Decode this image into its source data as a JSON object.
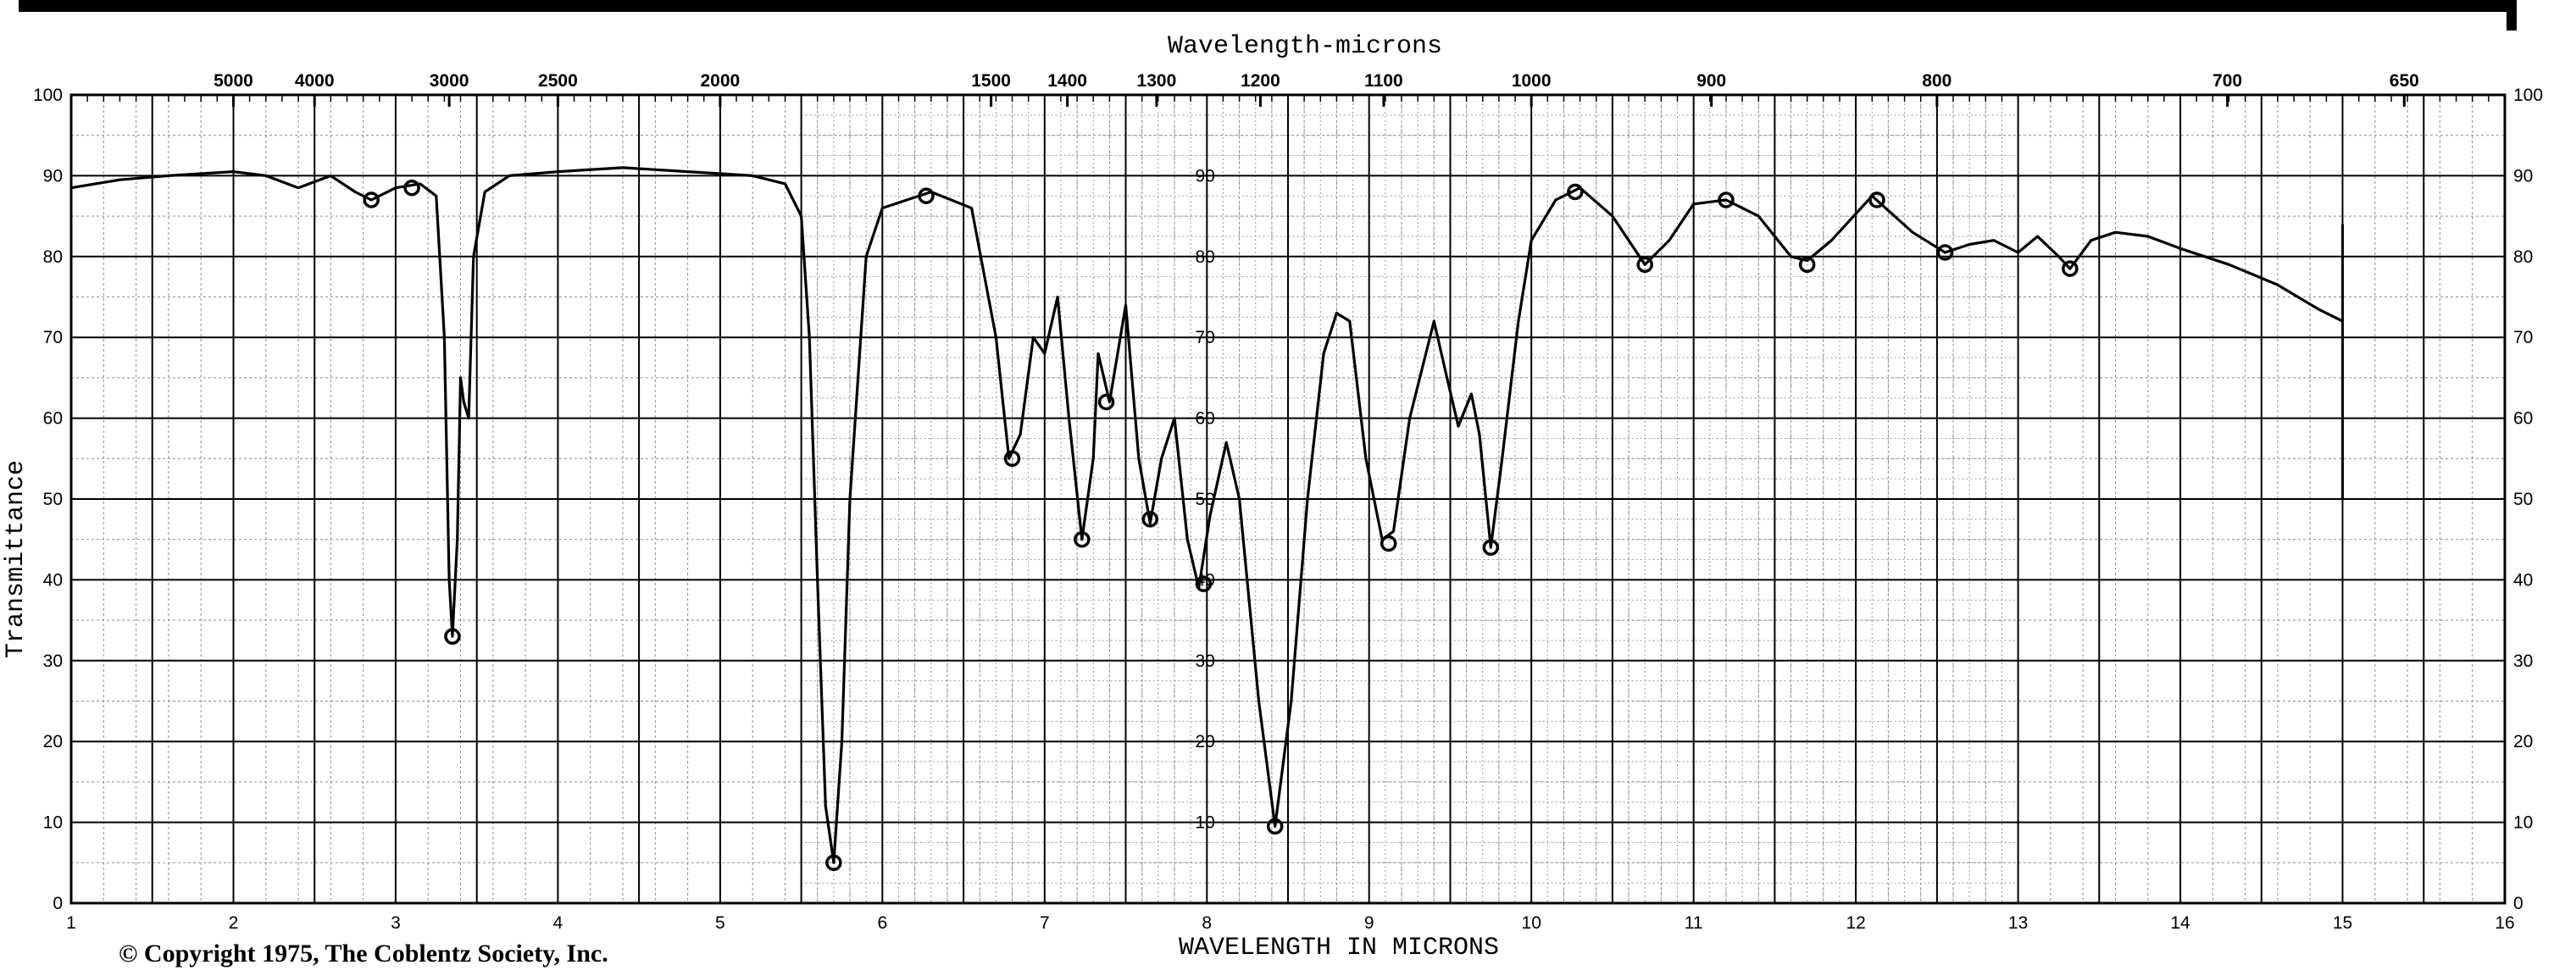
{
  "chart_data": {
    "type": "line",
    "title": "Wavelength-microns",
    "xlabel": "WAVELENGTH IN MICRONS",
    "ylabel": "Transmittance",
    "copyright": "© Copyright 1975, The Coblentz Society, Inc.",
    "xlim": [
      1,
      16
    ],
    "ylim": [
      0,
      100
    ],
    "grid": true,
    "x_ticks": [
      1,
      2,
      3,
      4,
      5,
      6,
      7,
      8,
      9,
      10,
      11,
      12,
      13,
      14,
      15,
      16
    ],
    "y_ticks": [
      0,
      10,
      20,
      30,
      40,
      50,
      60,
      70,
      80,
      90,
      100
    ],
    "y_inner_ticks": [
      10,
      20,
      30,
      40,
      50,
      60,
      70,
      80,
      90
    ],
    "top_axis_label": "Wavelength-microns",
    "top_ticks": [
      {
        "label": "5000",
        "x": 2.0
      },
      {
        "label": "4000",
        "x": 2.5
      },
      {
        "label": "3000",
        "x": 3.33
      },
      {
        "label": "2500",
        "x": 4.0
      },
      {
        "label": "2000",
        "x": 5.0
      },
      {
        "label": "1500",
        "x": 6.67
      },
      {
        "label": "1400",
        "x": 7.14
      },
      {
        "label": "1300",
        "x": 7.69
      },
      {
        "label": "1200",
        "x": 8.33
      },
      {
        "label": "1100",
        "x": 9.09
      },
      {
        "label": "1000",
        "x": 10.0
      },
      {
        "label": "900",
        "x": 11.11
      },
      {
        "label": "800",
        "x": 12.5
      },
      {
        "label": "700",
        "x": 14.29
      },
      {
        "label": "650",
        "x": 15.38
      }
    ],
    "series": [
      {
        "color": "#000000",
        "points": [
          [
            1.0,
            88.5
          ],
          [
            1.3,
            89.5
          ],
          [
            1.6,
            90
          ],
          [
            2.0,
            90.5
          ],
          [
            2.2,
            90
          ],
          [
            2.4,
            88.5
          ],
          [
            2.6,
            90
          ],
          [
            2.75,
            88
          ],
          [
            2.85,
            87
          ],
          [
            3.0,
            88.5
          ],
          [
            3.15,
            89
          ],
          [
            3.25,
            87.5
          ],
          [
            3.3,
            70
          ],
          [
            3.33,
            40
          ],
          [
            3.35,
            33
          ],
          [
            3.38,
            45
          ],
          [
            3.4,
            65
          ],
          [
            3.42,
            62
          ],
          [
            3.45,
            60
          ],
          [
            3.48,
            80
          ],
          [
            3.55,
            88
          ],
          [
            3.7,
            90
          ],
          [
            4.0,
            90.5
          ],
          [
            4.4,
            91
          ],
          [
            4.8,
            90.5
          ],
          [
            5.2,
            90
          ],
          [
            5.4,
            89
          ],
          [
            5.5,
            85
          ],
          [
            5.55,
            70
          ],
          [
            5.6,
            40
          ],
          [
            5.65,
            12
          ],
          [
            5.7,
            5
          ],
          [
            5.75,
            20
          ],
          [
            5.8,
            50
          ],
          [
            5.9,
            80
          ],
          [
            6.0,
            86
          ],
          [
            6.3,
            88
          ],
          [
            6.55,
            86
          ],
          [
            6.7,
            70
          ],
          [
            6.78,
            55
          ],
          [
            6.85,
            58
          ],
          [
            6.93,
            70
          ],
          [
            7.0,
            68
          ],
          [
            7.08,
            75
          ],
          [
            7.15,
            60
          ],
          [
            7.23,
            45
          ],
          [
            7.3,
            55
          ],
          [
            7.33,
            68
          ],
          [
            7.4,
            62
          ],
          [
            7.5,
            74
          ],
          [
            7.58,
            55
          ],
          [
            7.65,
            47
          ],
          [
            7.72,
            55
          ],
          [
            7.8,
            60
          ],
          [
            7.88,
            45
          ],
          [
            7.95,
            39
          ],
          [
            8.02,
            48
          ],
          [
            8.12,
            57
          ],
          [
            8.2,
            50
          ],
          [
            8.32,
            25
          ],
          [
            8.42,
            9.5
          ],
          [
            8.52,
            25
          ],
          [
            8.62,
            50
          ],
          [
            8.72,
            68
          ],
          [
            8.8,
            73
          ],
          [
            8.88,
            72
          ],
          [
            8.98,
            55
          ],
          [
            9.08,
            45
          ],
          [
            9.15,
            46
          ],
          [
            9.25,
            60
          ],
          [
            9.4,
            72
          ],
          [
            9.48,
            65
          ],
          [
            9.55,
            59
          ],
          [
            9.63,
            63
          ],
          [
            9.68,
            58
          ],
          [
            9.75,
            44
          ],
          [
            9.82,
            55
          ],
          [
            9.92,
            72
          ],
          [
            10.0,
            82
          ],
          [
            10.15,
            87
          ],
          [
            10.3,
            88.5
          ],
          [
            10.5,
            85
          ],
          [
            10.7,
            79
          ],
          [
            10.85,
            82
          ],
          [
            11.0,
            86.5
          ],
          [
            11.2,
            87
          ],
          [
            11.4,
            85
          ],
          [
            11.6,
            80
          ],
          [
            11.7,
            79.5
          ],
          [
            11.85,
            82
          ],
          [
            12.1,
            87.5
          ],
          [
            12.35,
            83
          ],
          [
            12.55,
            80.5
          ],
          [
            12.7,
            81.5
          ],
          [
            12.85,
            82
          ],
          [
            13.0,
            80.5
          ],
          [
            13.12,
            82.5
          ],
          [
            13.25,
            80
          ],
          [
            13.32,
            78.5
          ],
          [
            13.45,
            82
          ],
          [
            13.6,
            83
          ],
          [
            13.8,
            82.5
          ],
          [
            14.0,
            81
          ],
          [
            14.3,
            79
          ],
          [
            14.6,
            76.5
          ],
          [
            14.85,
            73.5
          ],
          [
            15.0,
            72
          ]
        ]
      }
    ],
    "markers": [
      [
        2.85,
        87
      ],
      [
        3.1,
        88.5
      ],
      [
        3.35,
        33
      ],
      [
        5.7,
        5
      ],
      [
        6.27,
        87.5
      ],
      [
        6.8,
        55
      ],
      [
        7.23,
        45
      ],
      [
        7.38,
        62
      ],
      [
        7.65,
        47.5
      ],
      [
        7.98,
        39.5
      ],
      [
        8.42,
        9.5
      ],
      [
        9.12,
        44.5
      ],
      [
        9.75,
        44
      ],
      [
        10.27,
        88
      ],
      [
        10.7,
        79
      ],
      [
        11.2,
        87
      ],
      [
        11.7,
        79
      ],
      [
        12.13,
        87
      ],
      [
        12.55,
        80.5
      ],
      [
        13.32,
        78.5
      ]
    ]
  }
}
